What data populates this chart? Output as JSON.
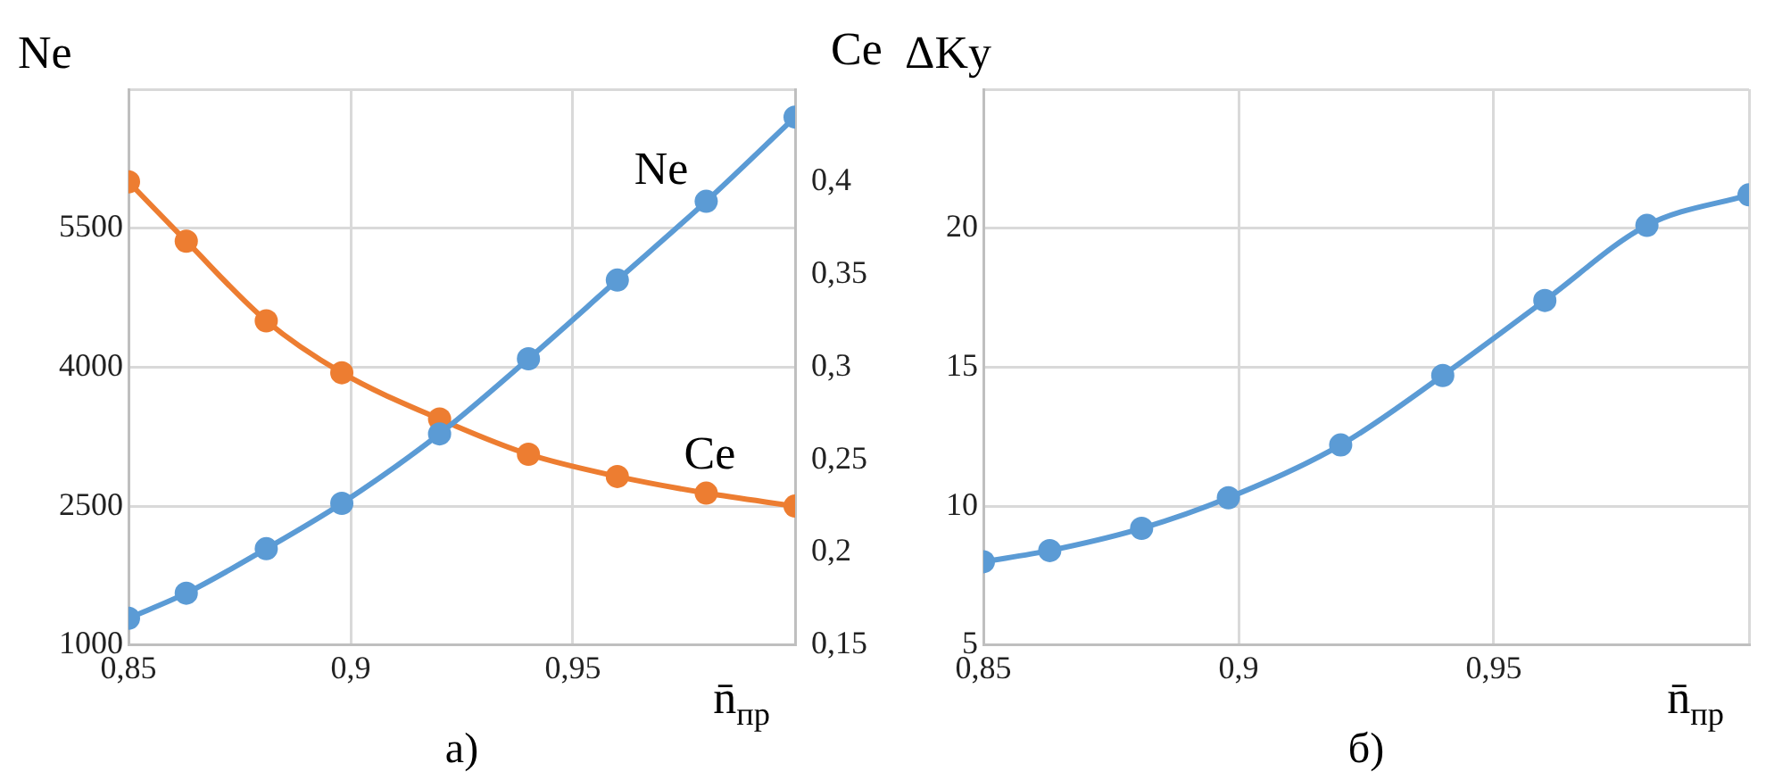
{
  "chart_data": [
    {
      "type": "line",
      "ylabel": "Ne",
      "y2label": "Ce",
      "xlabel": "n̄$_{пр}$",
      "annotations": [
        "a)"
      ],
      "grid": true,
      "legend": false,
      "marker": "circle",
      "line_style": "solid",
      "xlim": [
        0.85,
        1.0
      ],
      "xticks": [
        {
          "value": 0.85,
          "label": "0,85"
        },
        {
          "value": 0.9,
          "label": "0,9"
        },
        {
          "value": 0.95,
          "label": "0,95"
        },
        {
          "value": 1.0,
          "label": null
        }
      ],
      "ylim": [
        1000,
        7000
      ],
      "yticks": [
        1000,
        2500,
        4000,
        5500,
        {
          "value": 7000,
          "label": null
        }
      ],
      "y2lim": [
        0.15,
        0.45
      ],
      "y2ticks": [
        {
          "value": 0.15,
          "label": "0,15"
        },
        {
          "value": 0.2,
          "label": "0,2"
        },
        {
          "value": 0.25,
          "label": "0,25"
        },
        {
          "value": 0.3,
          "label": "0,3"
        },
        {
          "value": 0.35,
          "label": "0,35"
        },
        {
          "value": 0.4,
          "label": "0,4"
        },
        {
          "value": 0.45,
          "label": null
        }
      ],
      "x": [
        0.85,
        0.863,
        0.881,
        0.898,
        0.92,
        0.94,
        0.96,
        0.98,
        1.0
      ],
      "series": [
        {
          "name": "Ne",
          "color": "#5b9bd5",
          "values": [
            1290,
            1560,
            2040,
            2530,
            3280,
            4090,
            4940,
            5790,
            6700
          ]
        },
        {
          "name": "Ce",
          "color": "#ed7d31",
          "axis": "y2",
          "values": [
            0.4,
            0.368,
            0.325,
            0.297,
            0.272,
            0.253,
            0.241,
            0.232,
            0.225
          ]
        }
      ]
    },
    {
      "type": "line",
      "ylabel": "ΔKy",
      "xlabel": "n̄$_{пр}$",
      "annotations": [
        "б)"
      ],
      "grid": true,
      "legend": false,
      "marker": "circle",
      "line_style": "solid",
      "xlim": [
        0.85,
        1.0
      ],
      "xticks": [
        {
          "value": 0.85,
          "label": "0,85"
        },
        {
          "value": 0.9,
          "label": "0,9"
        },
        {
          "value": 0.95,
          "label": "0,95"
        },
        {
          "value": 1.0,
          "label": null
        }
      ],
      "ylim": [
        5,
        25
      ],
      "yticks": [
        5,
        10,
        15,
        20,
        {
          "value": 25,
          "label": null
        }
      ],
      "x": [
        0.85,
        0.863,
        0.881,
        0.898,
        0.92,
        0.94,
        0.96,
        0.98,
        1.0
      ],
      "series": [
        {
          "color": "#5b9bd5",
          "values": [
            8.0,
            8.4,
            9.2,
            10.3,
            12.2,
            14.7,
            17.4,
            20.1,
            21.2
          ]
        }
      ]
    }
  ]
}
